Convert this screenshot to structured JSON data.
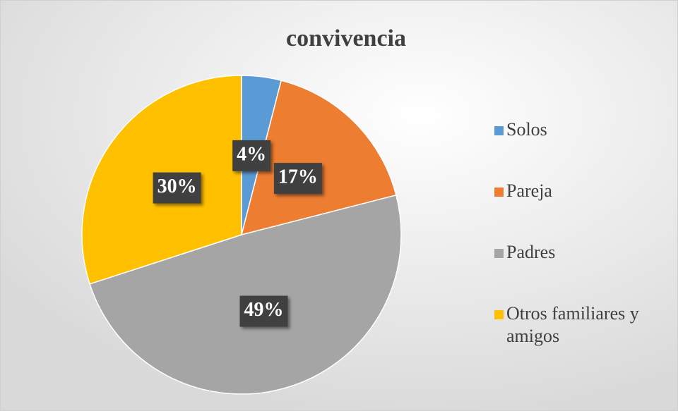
{
  "chart_data": {
    "type": "pie",
    "title": "convivencia",
    "categories": [
      "Solos",
      "Pareja",
      "Padres",
      "Otros familiares y amigos"
    ],
    "values": [
      4,
      17,
      49,
      30
    ],
    "value_labels": [
      "4%",
      "17%",
      "49%",
      "30%"
    ],
    "colors": [
      "#5b9bd5",
      "#ed7d31",
      "#a5a5a5",
      "#ffc000"
    ],
    "legend": "right"
  }
}
